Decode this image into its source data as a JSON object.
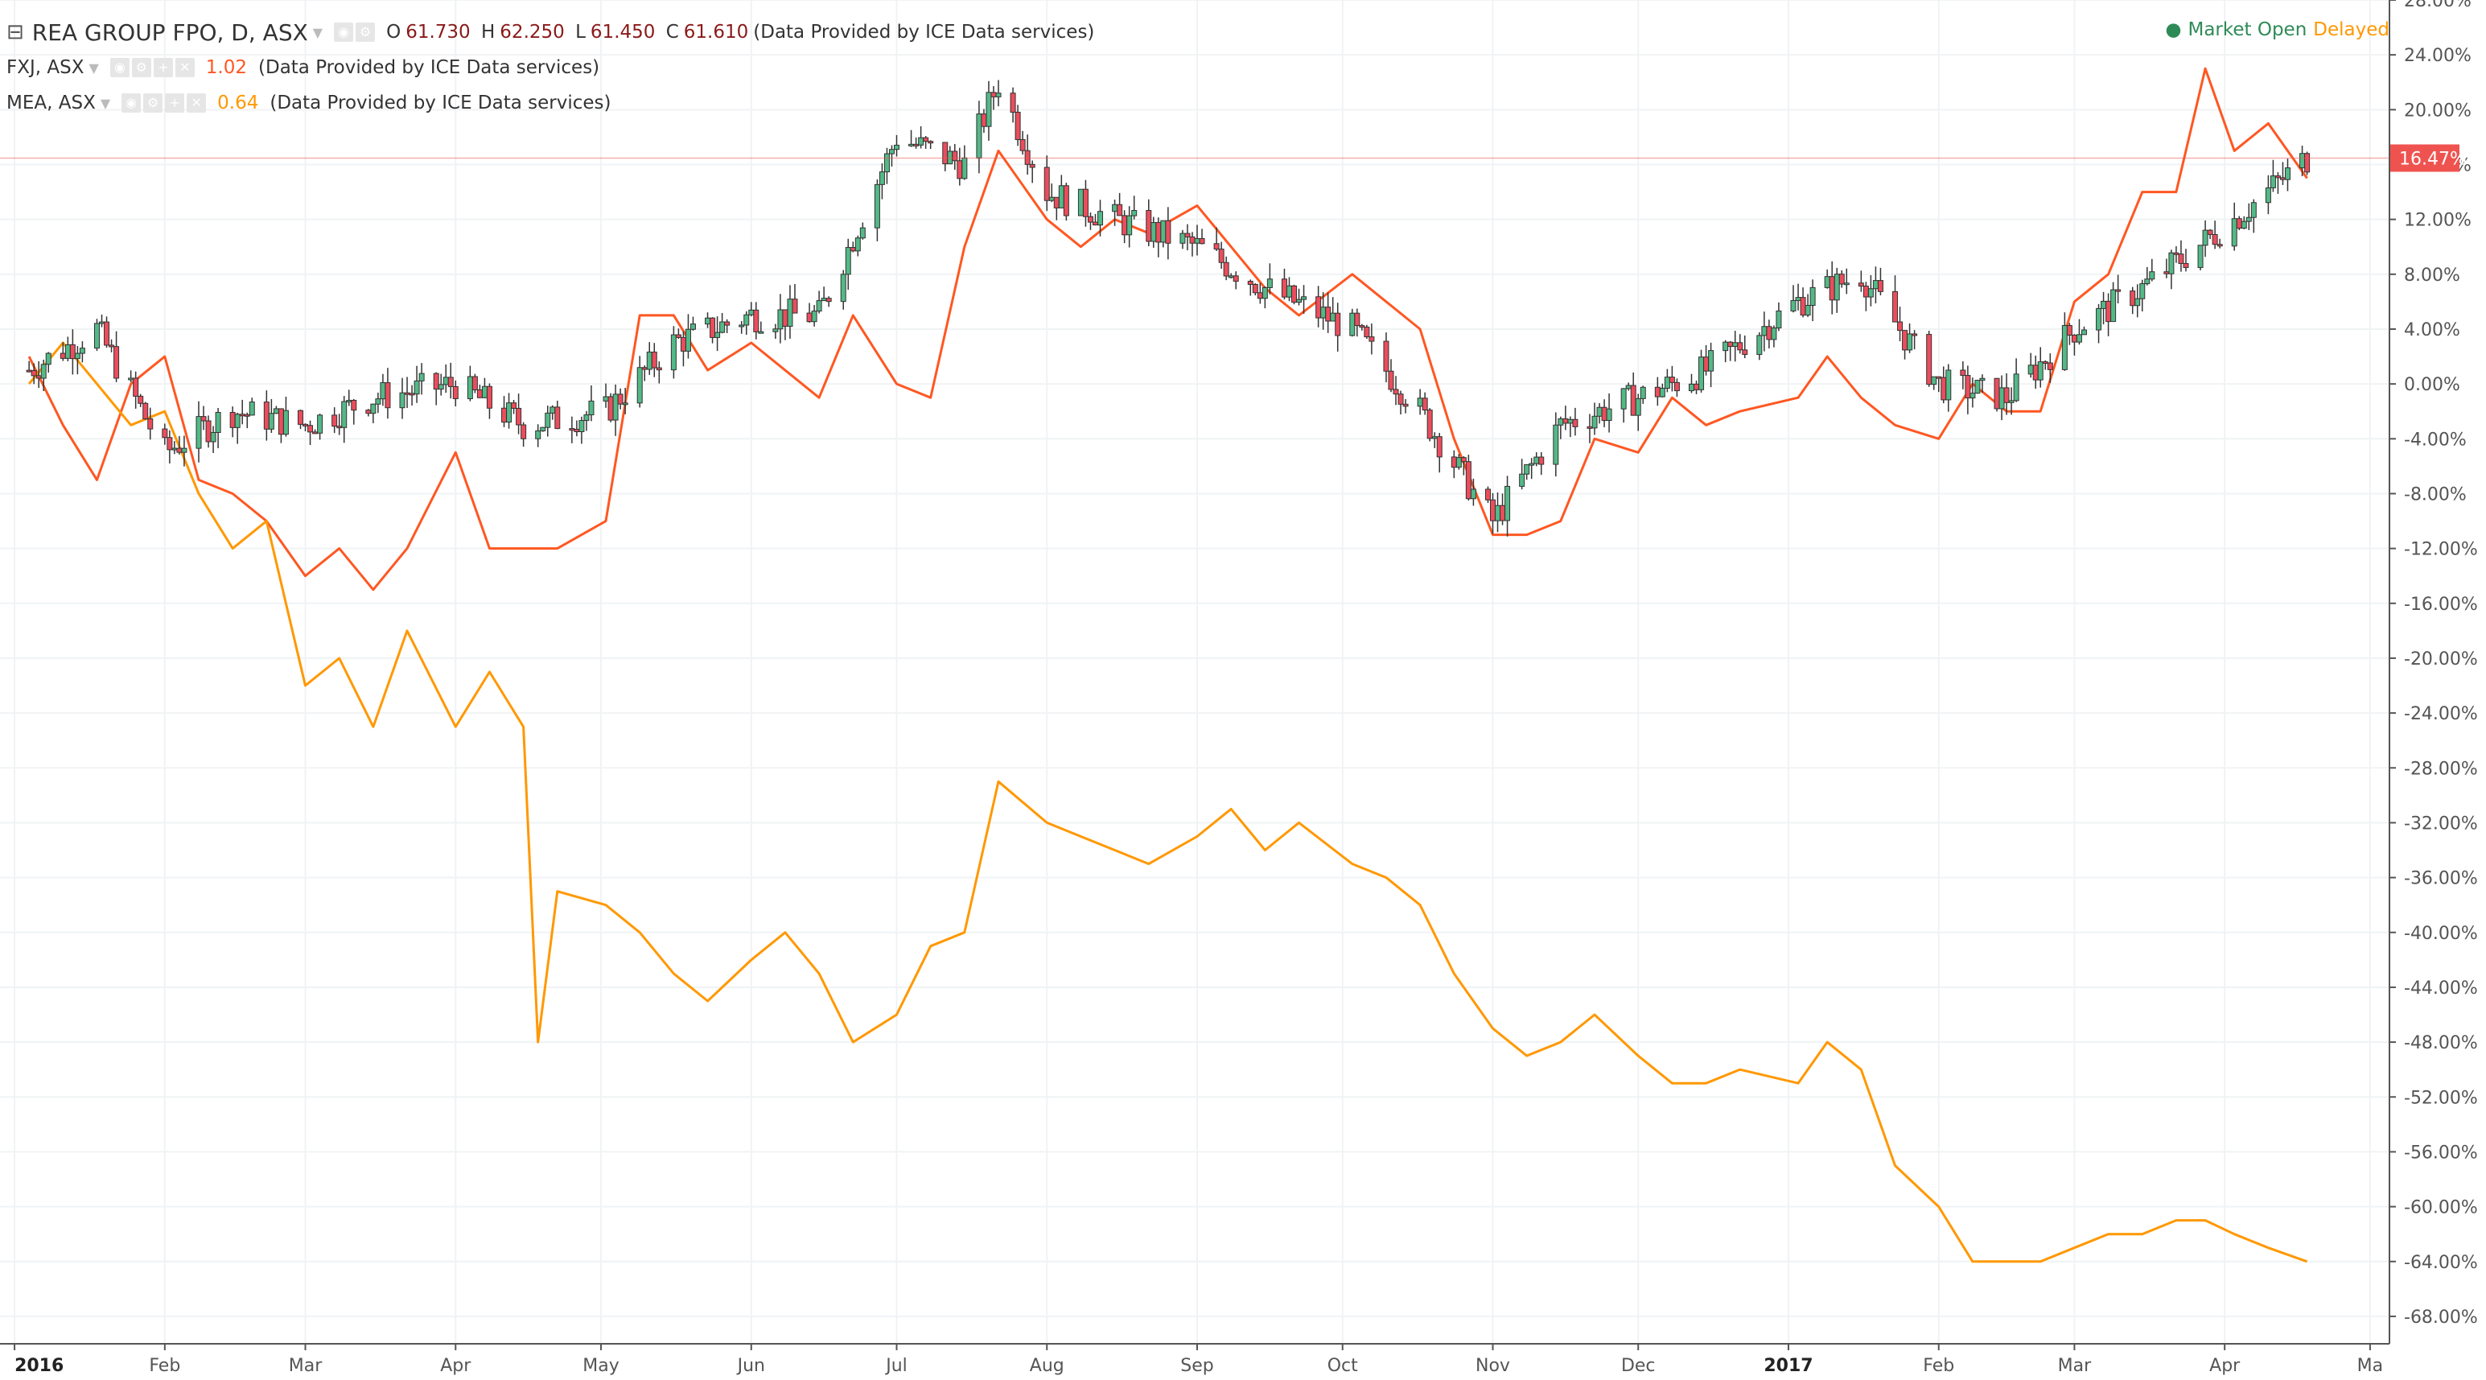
{
  "legend": {
    "main": {
      "symbol": "REA GROUP FPO, D, ASX",
      "o_label": "O",
      "o": "61.730",
      "h_label": "H",
      "h": "62.250",
      "l_label": "L",
      "l": "61.450",
      "c_label": "C",
      "c": "61.610",
      "source": "(Data Provided by ICE Data services)"
    },
    "fxj": {
      "symbol": "FXJ, ASX",
      "value": "1.02",
      "source": "(Data Provided by ICE Data services)",
      "color": "#ff5722"
    },
    "mea": {
      "symbol": "MEA, ASX",
      "value": "0.64",
      "source": "(Data Provided by ICE Data services)",
      "color": "#ff9800"
    }
  },
  "status": {
    "market": "Market Open",
    "delay": "Delayed"
  },
  "colors": {
    "up": "#53b987",
    "down": "#eb4d5c",
    "grid": "#f0f3f5",
    "axis": "#555555",
    "last_price": "#ef5350"
  },
  "chart_data": {
    "type": "line",
    "y_unit": "%",
    "ylim": [
      -70,
      28
    ],
    "y_ticks": [
      "28.00%",
      "24.00%",
      "20.00%",
      "16.00%",
      "12.00%",
      "8.00%",
      "4.00%",
      "0.00%",
      "-4.00%",
      "-8.00%",
      "-12.00%",
      "-16.00%",
      "-20.00%",
      "-24.00%",
      "-28.00%",
      "-32.00%",
      "-36.00%",
      "-40.00%",
      "-44.00%",
      "-48.00%",
      "-52.00%",
      "-56.00%",
      "-60.00%",
      "-64.00%",
      "-68.00%"
    ],
    "x_ticks": [
      "2016",
      "Feb",
      "Mar",
      "Apr",
      "May",
      "Jun",
      "Jul",
      "Aug",
      "Sep",
      "Oct",
      "Nov",
      "Dec",
      "2017",
      "Feb",
      "Mar",
      "Apr",
      "Ma"
    ],
    "last_value_label": "16.47%",
    "series": [
      {
        "name": "REA GROUP FPO",
        "style": "candles",
        "x": [
          "2016-01-04",
          "2016-01-18",
          "2016-02-01",
          "2016-02-15",
          "2016-03-01",
          "2016-03-15",
          "2016-04-01",
          "2016-04-15",
          "2016-05-02",
          "2016-05-16",
          "2016-06-01",
          "2016-06-15",
          "2016-07-01",
          "2016-07-15",
          "2016-07-22",
          "2016-08-01",
          "2016-08-15",
          "2016-09-01",
          "2016-09-15",
          "2016-10-03",
          "2016-10-17",
          "2016-11-01",
          "2016-11-15",
          "2016-12-01",
          "2016-12-15",
          "2017-01-03",
          "2017-01-16",
          "2017-02-01",
          "2017-02-15",
          "2017-03-01",
          "2017-03-15",
          "2017-04-03",
          "2017-04-18"
        ],
        "values": [
          1,
          4,
          -5,
          -2,
          -3,
          -1,
          0,
          -3,
          -2,
          3,
          5,
          5,
          18,
          16,
          22,
          14,
          12,
          10,
          7,
          4,
          -2,
          -10,
          -3,
          -1,
          1,
          6,
          8,
          0,
          -1,
          4,
          7,
          12,
          16.47
        ]
      },
      {
        "name": "FXJ",
        "style": "line",
        "x": [
          "2016-01-04",
          "2016-01-11",
          "2016-01-18",
          "2016-01-25",
          "2016-02-01",
          "2016-02-08",
          "2016-02-15",
          "2016-02-22",
          "2016-03-01",
          "2016-03-08",
          "2016-03-15",
          "2016-03-22",
          "2016-04-01",
          "2016-04-08",
          "2016-04-15",
          "2016-04-22",
          "2016-05-02",
          "2016-05-09",
          "2016-05-16",
          "2016-05-23",
          "2016-06-01",
          "2016-06-08",
          "2016-06-15",
          "2016-06-22",
          "2016-07-01",
          "2016-07-08",
          "2016-07-15",
          "2016-07-22",
          "2016-08-01",
          "2016-08-08",
          "2016-08-15",
          "2016-08-22",
          "2016-09-01",
          "2016-09-08",
          "2016-09-15",
          "2016-09-22",
          "2016-10-03",
          "2016-10-10",
          "2016-10-17",
          "2016-10-24",
          "2016-11-01",
          "2016-11-08",
          "2016-11-15",
          "2016-11-22",
          "2016-12-01",
          "2016-12-08",
          "2016-12-15",
          "2016-12-22",
          "2017-01-03",
          "2017-01-09",
          "2017-01-16",
          "2017-01-23",
          "2017-02-01",
          "2017-02-08",
          "2017-02-15",
          "2017-02-22",
          "2017-03-01",
          "2017-03-08",
          "2017-03-15",
          "2017-03-22",
          "2017-03-28",
          "2017-04-03",
          "2017-04-10",
          "2017-04-18"
        ],
        "values": [
          2,
          -3,
          -7,
          0,
          2,
          -7,
          -8,
          -10,
          -14,
          -12,
          -15,
          -12,
          -5,
          -12,
          -12,
          -12,
          -10,
          5,
          5,
          1,
          3,
          1,
          -1,
          5,
          0,
          -1,
          10,
          17,
          12,
          10,
          12,
          11,
          13,
          10,
          7,
          5,
          8,
          6,
          4,
          -4,
          -11,
          -11,
          -10,
          -4,
          -5,
          -1,
          -3,
          -2,
          -1,
          2,
          -1,
          -3,
          -4,
          0,
          -2,
          -2,
          6,
          8,
          14,
          14,
          23,
          17,
          19,
          15
        ]
      },
      {
        "name": "MEA",
        "style": "line",
        "x": [
          "2016-01-04",
          "2016-01-11",
          "2016-01-18",
          "2016-01-25",
          "2016-02-01",
          "2016-02-08",
          "2016-02-15",
          "2016-02-22",
          "2016-03-01",
          "2016-03-08",
          "2016-03-15",
          "2016-03-22",
          "2016-04-01",
          "2016-04-08",
          "2016-04-15",
          "2016-04-18",
          "2016-04-22",
          "2016-05-02",
          "2016-05-09",
          "2016-05-16",
          "2016-05-23",
          "2016-06-01",
          "2016-06-08",
          "2016-06-15",
          "2016-06-22",
          "2016-07-01",
          "2016-07-08",
          "2016-07-15",
          "2016-07-22",
          "2016-08-01",
          "2016-08-08",
          "2016-08-15",
          "2016-08-22",
          "2016-09-01",
          "2016-09-08",
          "2016-09-15",
          "2016-09-22",
          "2016-10-03",
          "2016-10-10",
          "2016-10-17",
          "2016-10-24",
          "2016-11-01",
          "2016-11-08",
          "2016-11-15",
          "2016-11-22",
          "2016-12-01",
          "2016-12-08",
          "2016-12-15",
          "2016-12-22",
          "2017-01-03",
          "2017-01-09",
          "2017-01-16",
          "2017-01-23",
          "2017-02-01",
          "2017-02-08",
          "2017-02-15",
          "2017-02-22",
          "2017-03-01",
          "2017-03-08",
          "2017-03-15",
          "2017-03-22",
          "2017-03-28",
          "2017-04-03",
          "2017-04-10",
          "2017-04-18"
        ],
        "values": [
          0,
          3,
          0,
          -3,
          -2,
          -8,
          -12,
          -10,
          -22,
          -20,
          -25,
          -18,
          -25,
          -21,
          -25,
          -48,
          -37,
          -38,
          -40,
          -43,
          -45,
          -42,
          -40,
          -43,
          -48,
          -46,
          -41,
          -40,
          -29,
          -32,
          -33,
          -34,
          -35,
          -33,
          -31,
          -34,
          -32,
          -35,
          -36,
          -38,
          -43,
          -47,
          -49,
          -48,
          -46,
          -49,
          -51,
          -51,
          -50,
          -51,
          -48,
          -50,
          -57,
          -60,
          -64,
          -64,
          -64,
          -63,
          -62,
          -62,
          -61,
          -61,
          -62,
          -63,
          -64
        ]
      }
    ]
  }
}
